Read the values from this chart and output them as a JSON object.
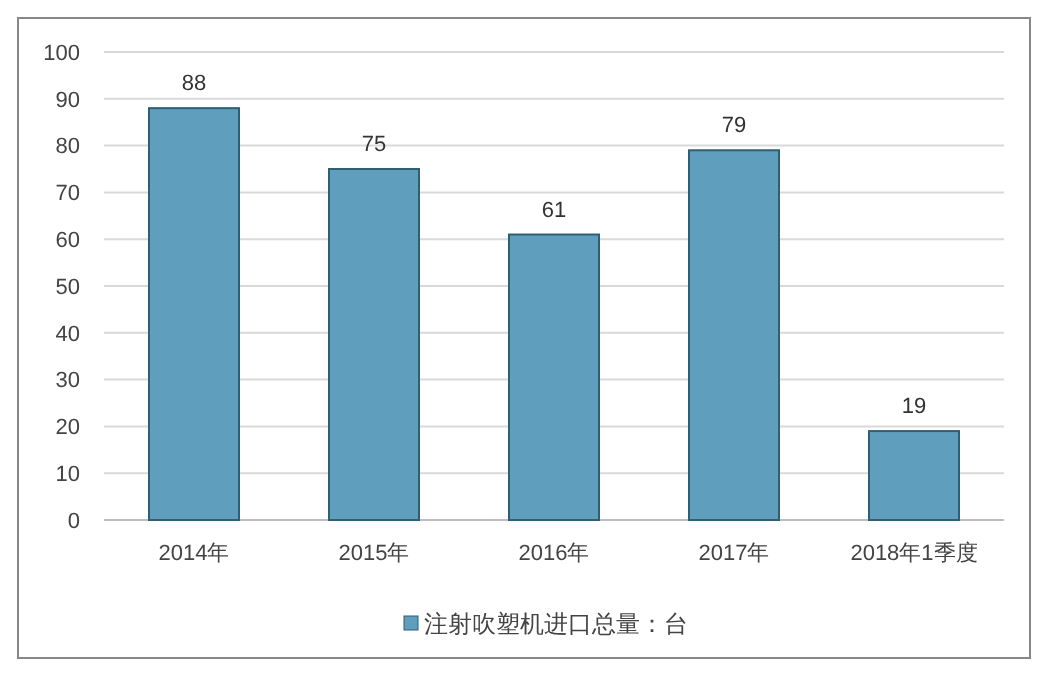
{
  "chart_data": {
    "type": "bar",
    "categories": [
      "2014年",
      "2015年",
      "2016年",
      "2017年",
      "2018年1季度"
    ],
    "series": [
      {
        "name": "注射吹塑机进口总量：台",
        "color": "#5f9fbd",
        "values": [
          88,
          75,
          61,
          79,
          19
        ]
      }
    ],
    "ylim": [
      0,
      100
    ],
    "yticks": [
      0,
      10,
      20,
      30,
      40,
      50,
      60,
      70,
      80,
      90,
      100
    ],
    "grid": "y",
    "data_labels": true,
    "legend": "bottom"
  }
}
